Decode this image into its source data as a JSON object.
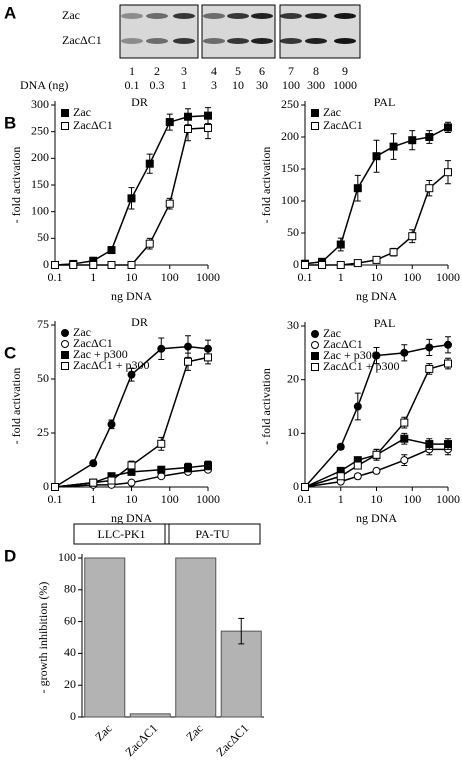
{
  "panel_labels": [
    "A",
    "B",
    "C",
    "D"
  ],
  "blot": {
    "rows": [
      "Zac",
      "ZacΔC1"
    ],
    "lanes": [
      1,
      2,
      3,
      4,
      5,
      6,
      7,
      8,
      9
    ],
    "dna_label": "DNA (ng)",
    "dna": [
      0.1,
      0.3,
      1,
      3,
      10,
      30,
      100,
      300,
      1000
    ]
  },
  "chart_data": [
    {
      "type": "line",
      "title": "DR",
      "x_label": "ng DNA",
      "y_label": "- fold activation",
      "log_x": true,
      "xlim": [
        0.1,
        1000
      ],
      "xticks": [
        0.1,
        1,
        10,
        100,
        1000
      ],
      "ylim": [
        0,
        300
      ],
      "yticks": [
        0,
        50,
        100,
        150,
        200,
        250,
        300
      ],
      "legend": "upper left",
      "x": [
        0.1,
        0.3,
        1,
        3,
        10,
        30,
        100,
        300,
        1000
      ],
      "series": [
        {
          "name": "Zac",
          "marker": "square",
          "color": "#000000",
          "values": [
            0,
            2,
            8,
            28,
            125,
            190,
            268,
            278,
            280
          ],
          "errors": [
            2,
            2,
            4,
            5,
            20,
            18,
            15,
            15,
            15
          ]
        },
        {
          "name": "ZacΔC1",
          "marker": "square",
          "color": "#ffffff",
          "values": [
            0,
            0,
            0,
            0,
            0,
            40,
            115,
            255,
            257
          ],
          "errors": [
            1,
            1,
            1,
            1,
            2,
            10,
            10,
            22,
            20
          ]
        }
      ]
    },
    {
      "type": "line",
      "title": "PAL",
      "x_label": "ng DNA",
      "y_label": "- fold activation",
      "log_x": true,
      "xlim": [
        0.1,
        1000
      ],
      "xticks": [
        0.1,
        1,
        10,
        100,
        1000
      ],
      "ylim": [
        0,
        250
      ],
      "yticks": [
        0,
        50,
        100,
        150,
        200,
        250
      ],
      "legend": "upper left",
      "x": [
        0.1,
        0.3,
        1,
        3,
        10,
        30,
        100,
        300,
        1000
      ],
      "series": [
        {
          "name": "Zac",
          "marker": "square",
          "color": "#000000",
          "values": [
            2,
            5,
            32,
            120,
            170,
            185,
            195,
            200,
            215
          ],
          "errors": [
            2,
            2,
            10,
            20,
            25,
            20,
            15,
            10,
            8
          ]
        },
        {
          "name": "ZacΔC1",
          "marker": "square",
          "color": "#ffffff",
          "values": [
            0,
            0,
            0,
            3,
            8,
            20,
            45,
            120,
            145
          ],
          "errors": [
            1,
            1,
            1,
            2,
            3,
            6,
            10,
            12,
            18
          ]
        }
      ]
    },
    {
      "type": "line",
      "title": "DR",
      "x_label": "ng DNA",
      "y_label": "- fold activation",
      "log_x": true,
      "xlim": [
        0.1,
        1000
      ],
      "xticks": [
        0.1,
        1,
        10,
        100,
        1000
      ],
      "ylim": [
        0,
        75
      ],
      "yticks": [
        0,
        25,
        50,
        75
      ],
      "legend": "upper left",
      "x": [
        0.1,
        1,
        3,
        10,
        60,
        300,
        1000
      ],
      "series": [
        {
          "name": "Zac",
          "marker": "circle",
          "color": "#000000",
          "values": [
            0,
            11,
            29,
            52,
            64,
            65,
            64
          ],
          "errors": [
            0,
            1,
            2,
            3,
            5,
            5,
            4
          ]
        },
        {
          "name": "ZacΔC1",
          "marker": "circle",
          "color": "#ffffff",
          "values": [
            0,
            1,
            1,
            2,
            5,
            7,
            8
          ],
          "errors": [
            0,
            0,
            0,
            1,
            1,
            1,
            1
          ]
        },
        {
          "name": "Zac + p300",
          "marker": "square",
          "color": "#000000",
          "values": [
            0,
            2,
            5,
            7,
            8,
            9,
            10
          ],
          "errors": [
            0,
            1,
            1,
            1,
            1,
            2,
            2
          ]
        },
        {
          "name": "ZacΔC1 + p300",
          "marker": "square",
          "color": "#ffffff",
          "values": [
            0,
            2,
            3,
            10,
            20,
            58,
            60
          ],
          "errors": [
            0,
            1,
            1,
            2,
            3,
            4,
            3
          ]
        }
      ]
    },
    {
      "type": "line",
      "title": "PAL",
      "x_label": "ng DNA",
      "y_label": "- fold activation",
      "log_x": true,
      "xlim": [
        0.1,
        1000
      ],
      "xticks": [
        0.1,
        1,
        10,
        100,
        1000
      ],
      "ylim": [
        0,
        30
      ],
      "yticks": [
        0,
        10,
        20,
        30
      ],
      "legend": "upper left",
      "x": [
        0.1,
        1,
        3,
        10,
        60,
        300,
        1000
      ],
      "series": [
        {
          "name": "Zac",
          "marker": "circle",
          "color": "#000000",
          "values": [
            0,
            7.5,
            15,
            24.5,
            25,
            26,
            26.5
          ],
          "errors": [
            0,
            0.5,
            2.5,
            1.5,
            1.5,
            1.5,
            1.5
          ]
        },
        {
          "name": "ZacΔC1",
          "marker": "circle",
          "color": "#ffffff",
          "values": [
            0,
            1,
            2,
            3,
            5,
            7,
            7
          ],
          "errors": [
            0,
            0.3,
            0.5,
            0.5,
            1,
            1,
            1
          ]
        },
        {
          "name": "Zac + p300",
          "marker": "square",
          "color": "#000000",
          "values": [
            0,
            3,
            5,
            6,
            9,
            8,
            8
          ],
          "errors": [
            0,
            0.5,
            0.5,
            1,
            1,
            1,
            1
          ]
        },
        {
          "name": "ZacΔC1 + p300",
          "marker": "square",
          "color": "#ffffff",
          "values": [
            0,
            2,
            4,
            6,
            12,
            22,
            23
          ],
          "errors": [
            0,
            0.5,
            0.5,
            1,
            1,
            1,
            1
          ]
        }
      ]
    },
    {
      "type": "bar",
      "y_label": "- growth inhibition (%)",
      "ylim": [
        0,
        100
      ],
      "yticks": [
        0,
        20,
        40,
        60,
        80,
        100
      ],
      "color": "#b3b3b3",
      "groups": [
        "LLC-PK1",
        "PA-TU"
      ],
      "categories": [
        "Zac",
        "ZacΔC1",
        "Zac",
        "ZacΔC1"
      ],
      "values": [
        100,
        2,
        100,
        54
      ],
      "errors": [
        0,
        0,
        0,
        8
      ]
    }
  ]
}
